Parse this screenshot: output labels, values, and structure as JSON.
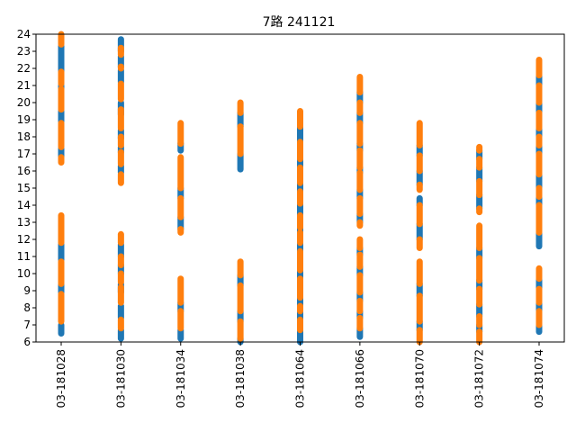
{
  "chart_data": {
    "type": "scatter",
    "title": "7路  241121",
    "xlabel": "",
    "ylabel": "",
    "ylim": [
      6,
      24
    ],
    "yticks": [
      6,
      7,
      8,
      9,
      10,
      11,
      12,
      13,
      14,
      15,
      16,
      17,
      18,
      19,
      20,
      21,
      22,
      23,
      24
    ],
    "categories": [
      "03-181028",
      "03-181030",
      "03-181034",
      "03-181038",
      "03-181064",
      "03-181066",
      "03-181070",
      "03-181072",
      "03-181074"
    ],
    "grid": false,
    "colors": [
      "#1f77b4",
      "#ff7f0e"
    ],
    "series": [
      {
        "segments": [
          [
            [
              6.5,
              7.0
            ],
            [
              7.4,
              8.0
            ],
            [
              8.9,
              9.4
            ],
            [
              9.8,
              10.4
            ],
            [
              10.8,
              11.7
            ],
            [
              12.3,
              12.9
            ],
            [
              16.8,
              17.3
            ],
            [
              18.9,
              19.5
            ],
            [
              20.4,
              21.0
            ],
            [
              21.8,
              23.3
            ]
          ],
          [
            [
              6.2,
              6.7
            ],
            [
              7.4,
              8.1
            ],
            [
              8.9,
              9.4
            ],
            [
              10.0,
              10.5
            ],
            [
              11.0,
              11.7
            ],
            [
              15.9,
              16.3
            ],
            [
              17.1,
              17.4
            ],
            [
              17.9,
              18.4
            ],
            [
              19.3,
              20.0
            ],
            [
              21.2,
              21.9
            ],
            [
              22.1,
              22.7
            ],
            [
              23.0,
              23.7
            ]
          ],
          [
            [
              6.2,
              6.7
            ],
            [
              7.8,
              8.3
            ],
            [
              12.6,
              13.3
            ],
            [
              14.4,
              15.0
            ],
            [
              17.2,
              17.6
            ]
          ],
          [
            [
              6.0,
              6.2
            ],
            [
              7.2,
              7.8
            ],
            [
              9.3,
              9.9
            ],
            [
              16.1,
              17.0
            ],
            [
              18.6,
              19.4
            ]
          ],
          [
            [
              6.0,
              6.7
            ],
            [
              7.3,
              7.8
            ],
            [
              8.1,
              8.6
            ],
            [
              9.7,
              10.2
            ],
            [
              11.3,
              11.8
            ],
            [
              12.4,
              12.7
            ],
            [
              13.4,
              14.1
            ],
            [
              14.8,
              15.3
            ],
            [
              16.2,
              16.7
            ],
            [
              17.7,
              18.6
            ]
          ],
          [
            [
              6.3,
              6.8
            ],
            [
              7.4,
              7.8
            ],
            [
              8.4,
              8.9
            ],
            [
              9.9,
              10.4
            ],
            [
              11.1,
              11.5
            ],
            [
              13.0,
              13.5
            ],
            [
              14.4,
              14.9
            ],
            [
              15.9,
              16.2
            ],
            [
              17.2,
              17.6
            ],
            [
              18.8,
              19.4
            ],
            [
              20.0,
              20.6
            ]
          ],
          [
            [
              6.7,
              7.2
            ],
            [
              8.7,
              9.4
            ],
            [
              12.0,
              12.9
            ],
            [
              14.0,
              14.4
            ],
            [
              15.2,
              16.0
            ],
            [
              16.9,
              17.5
            ]
          ],
          [
            [
              6.6,
              7.0
            ],
            [
              7.5,
              8.2
            ],
            [
              9.1,
              9.6
            ],
            [
              10.9,
              11.5
            ],
            [
              13.8,
              14.6
            ],
            [
              15.4,
              16.2
            ],
            [
              16.7,
              17.2
            ]
          ],
          [
            [
              6.6,
              7.0
            ],
            [
              7.8,
              8.3
            ],
            [
              9.1,
              9.7
            ],
            [
              11.6,
              12.4
            ],
            [
              14.0,
              14.5
            ],
            [
              15.0,
              15.8
            ],
            [
              17.0,
              17.5
            ],
            [
              18.0,
              18.5
            ],
            [
              19.4,
              20.0
            ],
            [
              21.0,
              21.6
            ]
          ]
        ]
      },
      {
        "segments": [
          [
            [
              7.2,
              8.8
            ],
            [
              9.4,
              10.7
            ],
            [
              11.8,
              13.4
            ],
            [
              16.5,
              16.8
            ],
            [
              17.4,
              18.8
            ],
            [
              19.6,
              20.8
            ],
            [
              21.1,
              21.8
            ],
            [
              23.4,
              24.0
            ]
          ],
          [
            [
              6.8,
              7.3
            ],
            [
              8.3,
              9.2
            ],
            [
              9.5,
              10.0
            ],
            [
              10.5,
              11.0
            ],
            [
              11.8,
              12.3
            ],
            [
              15.3,
              15.8
            ],
            [
              16.4,
              17.1
            ],
            [
              17.5,
              18.0
            ],
            [
              18.5,
              19.6
            ],
            [
              20.2,
              21.1
            ],
            [
              22.0,
              22.1
            ],
            [
              22.8,
              23.2
            ]
          ],
          [
            [
              6.8,
              7.8
            ],
            [
              8.3,
              9.7
            ],
            [
              12.4,
              12.6
            ],
            [
              13.3,
              14.4
            ],
            [
              15.0,
              16.8
            ],
            [
              17.6,
              18.8
            ]
          ],
          [
            [
              6.2,
              7.2
            ],
            [
              7.8,
              9.3
            ],
            [
              9.9,
              10.7
            ],
            [
              17.0,
              18.6
            ],
            [
              19.4,
              20.0
            ]
          ],
          [
            [
              6.7,
              7.3
            ],
            [
              7.8,
              8.1
            ],
            [
              8.6,
              9.7
            ],
            [
              10.2,
              11.3
            ],
            [
              11.8,
              12.4
            ],
            [
              12.7,
              13.4
            ],
            [
              14.1,
              14.8
            ],
            [
              15.3,
              16.2
            ],
            [
              16.7,
              17.7
            ],
            [
              18.6,
              19.5
            ]
          ],
          [
            [
              6.8,
              7.4
            ],
            [
              7.8,
              8.4
            ],
            [
              8.9,
              9.9
            ],
            [
              10.4,
              11.1
            ],
            [
              11.5,
              12.0
            ],
            [
              12.8,
              13.0
            ],
            [
              13.5,
              14.4
            ],
            [
              14.9,
              15.9
            ],
            [
              16.2,
              17.2
            ],
            [
              17.6,
              18.8
            ],
            [
              19.4,
              20.0
            ],
            [
              20.6,
              21.5
            ]
          ],
          [
            [
              6.0,
              6.7
            ],
            [
              7.2,
              8.7
            ],
            [
              9.4,
              10.7
            ],
            [
              11.5,
              12.0
            ],
            [
              12.9,
              14.0
            ],
            [
              14.9,
              15.2
            ],
            [
              16.0,
              16.9
            ],
            [
              17.5,
              18.8
            ]
          ],
          [
            [
              6.0,
              6.6
            ],
            [
              7.0,
              7.5
            ],
            [
              8.2,
              9.1
            ],
            [
              9.6,
              10.9
            ],
            [
              11.5,
              12.8
            ],
            [
              13.6,
              13.8
            ],
            [
              14.6,
              15.4
            ],
            [
              16.2,
              16.7
            ],
            [
              17.2,
              17.4
            ]
          ],
          [
            [
              7.0,
              7.8
            ],
            [
              8.3,
              9.1
            ],
            [
              9.7,
              10.3
            ],
            [
              12.4,
              14.0
            ],
            [
              14.5,
              15.0
            ],
            [
              15.8,
              17.0
            ],
            [
              17.5,
              18.0
            ],
            [
              18.5,
              19.4
            ],
            [
              20.0,
              21.0
            ],
            [
              21.6,
              22.5
            ]
          ]
        ]
      }
    ]
  }
}
